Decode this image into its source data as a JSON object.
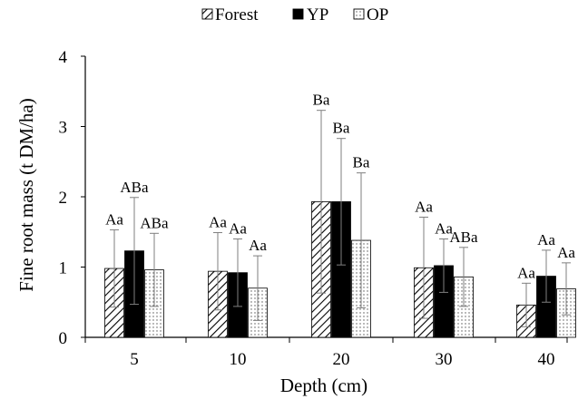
{
  "chart_data": {
    "type": "bar",
    "categories": [
      "5",
      "10",
      "20",
      "30",
      "40"
    ],
    "series": [
      {
        "name": "Forest",
        "pattern": "diagonal-hatch",
        "values": [
          0.98,
          0.94,
          1.93,
          0.99,
          0.46
        ],
        "error": [
          0.55,
          0.55,
          1.3,
          0.72,
          0.31
        ],
        "labels": [
          "Aa",
          "Aa",
          "Ba",
          "Aa",
          "Aa"
        ]
      },
      {
        "name": "YP",
        "pattern": "solid-black",
        "values": [
          1.23,
          0.92,
          1.93,
          1.02,
          0.87
        ],
        "error": [
          0.76,
          0.48,
          0.9,
          0.38,
          0.37
        ],
        "labels": [
          "ABa",
          "Aa",
          "Ba",
          "Aa",
          "Aa"
        ]
      },
      {
        "name": "OP",
        "pattern": "dotted",
        "values": [
          0.96,
          0.7,
          1.38,
          0.86,
          0.69
        ],
        "error": [
          0.52,
          0.46,
          0.96,
          0.42,
          0.37
        ],
        "labels": [
          "ABa",
          "Aa",
          "Ba",
          "ABa",
          "Aa"
        ]
      }
    ],
    "xlabel": "Depth (cm)",
    "ylabel": "Fine root mass (t DM/ha)",
    "ylim": [
      0,
      4
    ],
    "yticks": [
      "0",
      "1",
      "2",
      "3",
      "4"
    ],
    "grid": false,
    "legend_position": "top-center"
  },
  "colors": {
    "axis": "#000000",
    "bar_fill_solid": "#000000",
    "bar_fill_light": "#ffffff",
    "error_bar": "#7f7f7f"
  }
}
